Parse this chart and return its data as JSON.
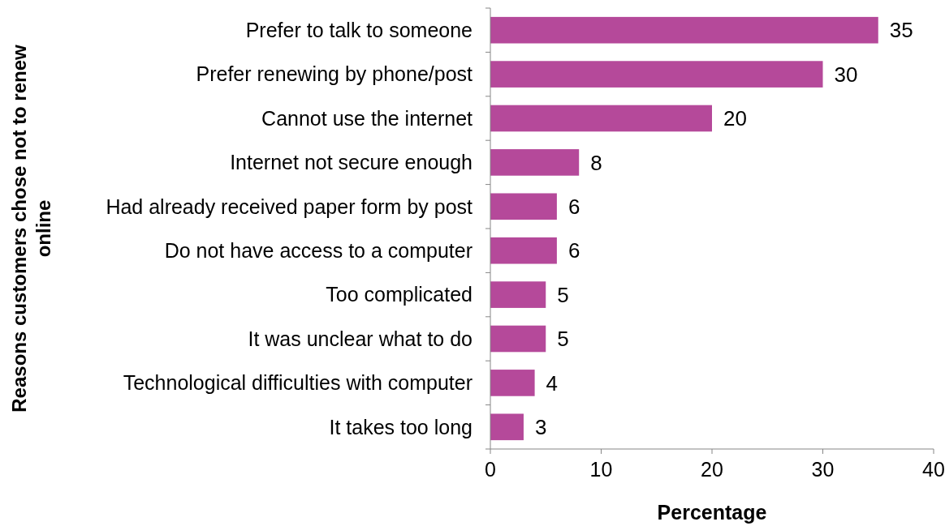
{
  "chart_data": {
    "type": "bar",
    "orientation": "horizontal",
    "xlabel": "Percentage",
    "ylabel": "Reasons customers chose not to renew online",
    "categories": [
      "Prefer to talk to someone",
      "Prefer renewing by phone/post",
      "Cannot use the internet",
      "Internet not secure enough",
      "Had already received paper form by post",
      "Do not have access to a computer",
      "Too complicated",
      "It was unclear what to do",
      "Technological difficulties with computer",
      "It takes too long"
    ],
    "values": [
      35,
      30,
      20,
      8,
      6,
      6,
      5,
      5,
      4,
      3
    ],
    "color": "#b5499a",
    "xlim": [
      0,
      40
    ],
    "xticks": [
      0,
      10,
      20,
      30,
      40
    ],
    "data_labels": true,
    "grid": false
  }
}
